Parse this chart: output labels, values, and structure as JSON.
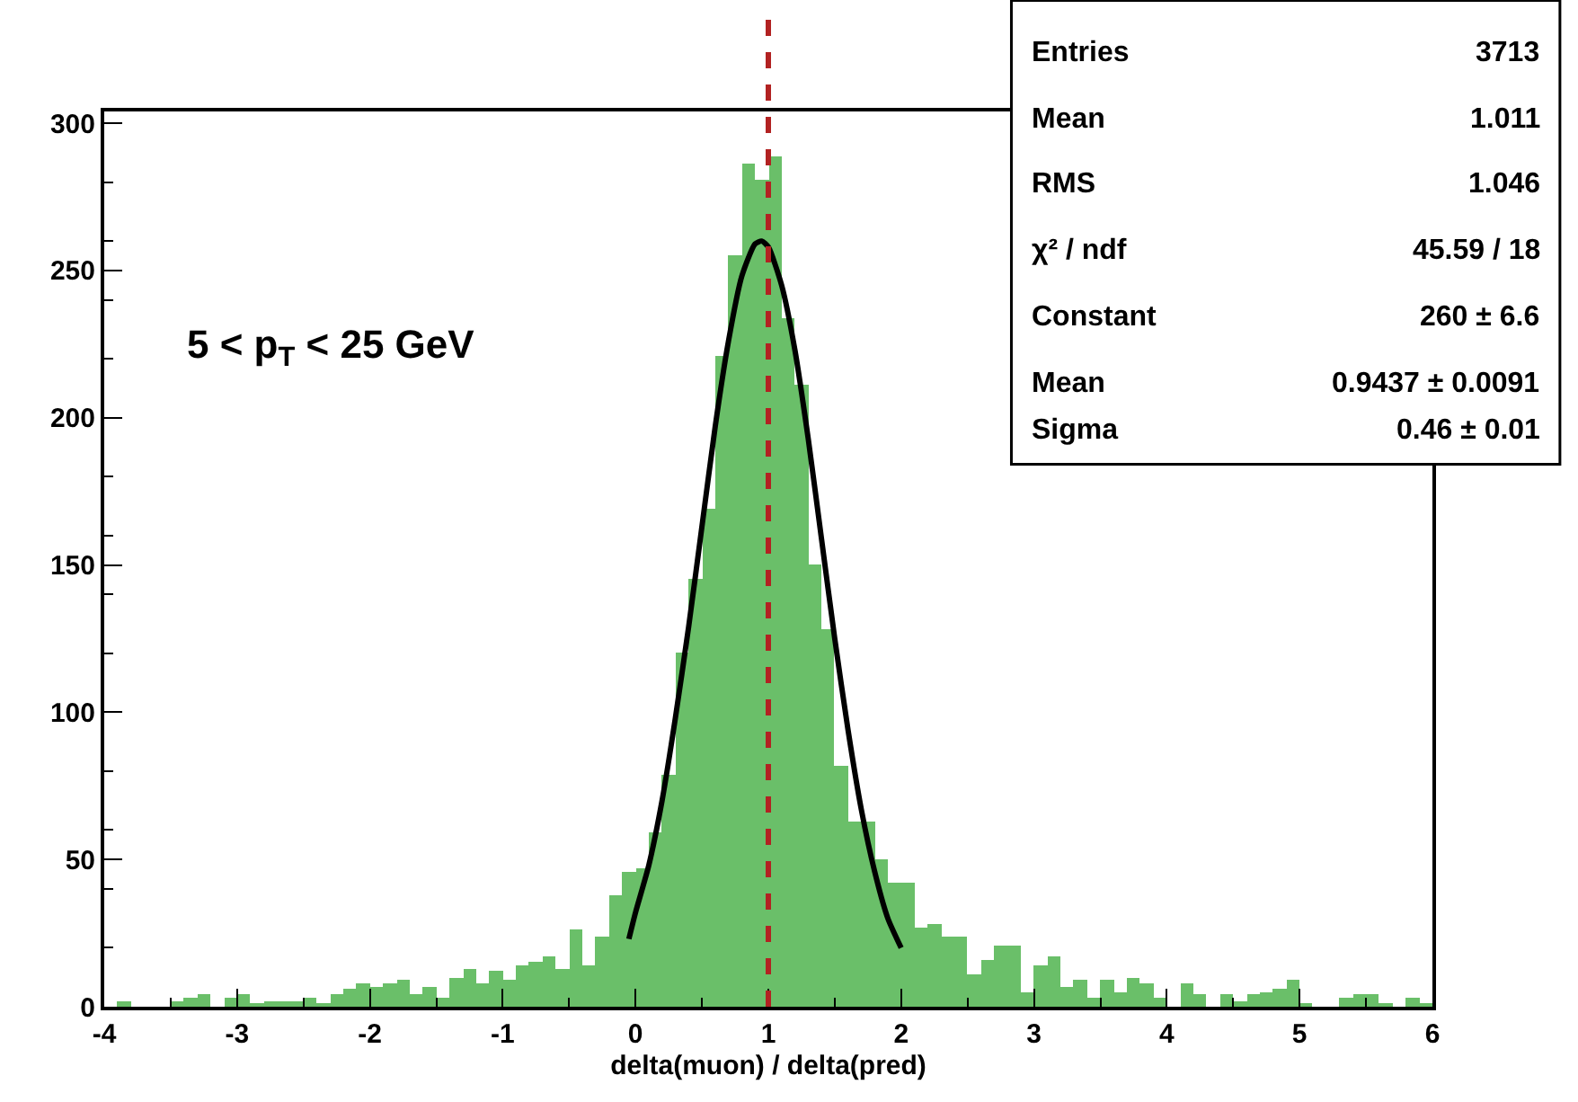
{
  "chart_data": {
    "type": "histogram",
    "xlabel": "delta(muon) / delta(pred)",
    "bins": [
      -4.0,
      -3.9,
      -3.8,
      -3.7,
      -3.6,
      -3.5,
      -3.4,
      -3.3,
      -3.2,
      -3.1,
      -3.0,
      -2.9,
      -2.8,
      -2.7,
      -2.6,
      -2.5,
      -2.4,
      -2.3,
      -2.2,
      -2.1,
      -2.0,
      -1.9,
      -1.8,
      -1.7,
      -1.6,
      -1.5,
      -1.4,
      -1.3,
      -1.2,
      -1.1,
      -1.0,
      -0.9,
      -0.8,
      -0.7,
      -0.6,
      -0.5,
      -0.4,
      -0.3,
      -0.2,
      -0.1,
      0.0,
      0.1,
      0.2,
      0.3,
      0.4,
      0.5,
      0.6,
      0.7,
      0.8,
      0.9,
      1.0,
      1.1,
      1.2,
      1.3,
      1.4,
      1.5,
      1.6,
      1.7,
      1.8,
      1.9,
      2.0,
      2.1,
      2.2,
      2.3,
      2.4,
      2.5,
      2.6,
      2.7,
      2.8,
      2.9,
      3.0,
      3.1,
      3.2,
      3.3,
      3.4,
      3.5,
      3.6,
      3.7,
      3.8,
      3.9,
      4.0,
      4.1,
      4.2,
      4.3,
      4.4,
      4.5,
      4.6,
      4.7,
      4.8,
      4.9,
      5.0,
      5.1,
      5.2,
      5.3,
      5.4,
      5.5,
      5.6,
      5.7,
      5.8,
      5.9,
      6.0
    ],
    "values": [
      0,
      2,
      0,
      0,
      0,
      2,
      3,
      4,
      0,
      3,
      4,
      1,
      2,
      2,
      2,
      3,
      1,
      4,
      6,
      8,
      7,
      8,
      9,
      4,
      7,
      3,
      10,
      13,
      8,
      12,
      9,
      14,
      15,
      17,
      13,
      26,
      14,
      24,
      38,
      46,
      47,
      59,
      79,
      120,
      145,
      169,
      221,
      255,
      286,
      281,
      289,
      234,
      211,
      150,
      128,
      82,
      63,
      63,
      50,
      42,
      42,
      27,
      28,
      24,
      24,
      11,
      16,
      21,
      21,
      5,
      14,
      17,
      7,
      9,
      3,
      9,
      5,
      10,
      8,
      3,
      0,
      8,
      4,
      0,
      4,
      2,
      4,
      5,
      6,
      9,
      1,
      0,
      0,
      3,
      4,
      4,
      1,
      0,
      3,
      1
    ],
    "color": "#6abf69",
    "series": [
      {
        "type": "line",
        "color": "#000000",
        "x": [
          -0.05,
          0.0,
          0.1,
          0.2,
          0.3,
          0.4,
          0.5,
          0.6,
          0.7,
          0.8,
          0.9,
          0.95,
          1.0,
          1.1,
          1.2,
          1.3,
          1.4,
          1.5,
          1.6,
          1.7,
          1.8,
          1.9,
          2.0
        ],
        "values": [
          23,
          32,
          48,
          70,
          98,
          129,
          163,
          197,
          226,
          248,
          259,
          260,
          258,
          245,
          223,
          193,
          159,
          125,
          94,
          67,
          46,
          30,
          20
        ]
      }
    ],
    "ref_lines": [
      {
        "axis": "x",
        "value": 1,
        "color": "#b22222",
        "line_style": "dashed"
      }
    ],
    "xlim": [
      -4,
      6
    ],
    "xticks": [
      -4,
      -3,
      -2,
      -1,
      0,
      1,
      2,
      3,
      4,
      5,
      6
    ],
    "ylim": [
      0,
      304
    ],
    "yticks": [
      0,
      50,
      100,
      150,
      200,
      250,
      300
    ],
    "annotations": [
      "5 < p$_{T}$ < 25 GeV",
      "Entries",
      "3713",
      "Mean",
      "1.011",
      "RMS",
      "1.046",
      "χ² / ndf",
      "45.59 / 18",
      "Constant",
      "260 ± 6.6",
      "Mean",
      "0.9437 ± 0.0091",
      "Sigma",
      "0.46 ± 0.01"
    ]
  }
}
